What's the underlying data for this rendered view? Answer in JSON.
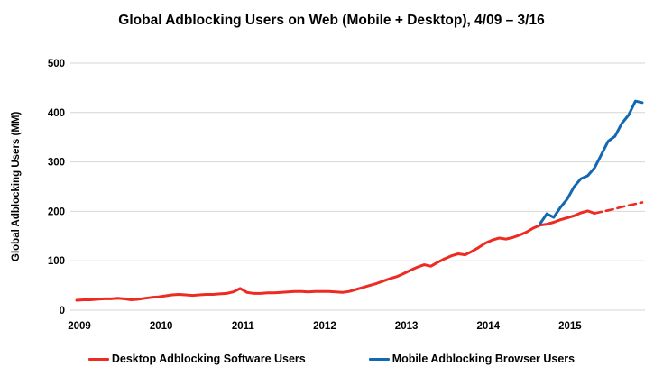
{
  "chart_data": {
    "type": "line",
    "title": "Global Adblocking Users on Web (Mobile + Desktop), 4/09 – 3/16",
    "xlabel": "",
    "ylabel": "Global Adblocking Users (MM)",
    "ylim": [
      0,
      500
    ],
    "y_ticks": [
      0,
      100,
      200,
      300,
      400,
      500
    ],
    "x_range_months": [
      0,
      83
    ],
    "x_period": "monthly, Apr 2009 - Mar 2016",
    "x_ticks": [
      {
        "label": "2009",
        "month": 0
      },
      {
        "label": "2010",
        "month": 12
      },
      {
        "label": "2011",
        "month": 24
      },
      {
        "label": "2012",
        "month": 36
      },
      {
        "label": "2013",
        "month": 48
      },
      {
        "label": "2014",
        "month": 60
      },
      {
        "label": "2015",
        "month": 72
      }
    ],
    "grid": "horizontal-only",
    "legend_position": "bottom-center",
    "colors": {
      "desktop_red": "#ee2b23",
      "mobile_blue": "#1268b3",
      "gridline_gray": "#d6d6d6",
      "text_black": "#000000"
    },
    "series": [
      {
        "id": "desktop-solid",
        "name": "Desktop Adblocking Software Users",
        "color": "#ee2b23",
        "style": "solid",
        "start_month": 0,
        "values": [
          20,
          21,
          21,
          22,
          23,
          23,
          24,
          23,
          21,
          22,
          24,
          26,
          27,
          29,
          31,
          32,
          31,
          30,
          31,
          32,
          32,
          33,
          34,
          37,
          44,
          36,
          34,
          34,
          35,
          35,
          36,
          37,
          38,
          38,
          37,
          38,
          38,
          38,
          37,
          36,
          38,
          42,
          46,
          50,
          54,
          59,
          64,
          68,
          74,
          81,
          87,
          92,
          89,
          97,
          104,
          110,
          114,
          112,
          119,
          127,
          136,
          142,
          146,
          144,
          147,
          152,
          158,
          166,
          172,
          174,
          178,
          183,
          187,
          191,
          197,
          201,
          196
        ]
      },
      {
        "id": "desktop-projection",
        "name": "Desktop projection (dashed)",
        "color": "#ee2b23",
        "style": "dashed",
        "start_month": 76,
        "values": [
          196,
          199,
          202,
          205,
          209,
          212,
          215,
          218
        ]
      },
      {
        "id": "mobile",
        "name": "Mobile Adblocking Browser Users",
        "color": "#1268b3",
        "style": "solid",
        "start_month": 68,
        "values": [
          175,
          195,
          188,
          208,
          225,
          250,
          266,
          272,
          288,
          315,
          342,
          352,
          378,
          395,
          423,
          420
        ]
      }
    ],
    "legend": [
      {
        "label": "Desktop Adblocking Software Users",
        "color": "#ee2b23"
      },
      {
        "label": "Mobile Adblocking Browser Users",
        "color": "#1268b3"
      }
    ]
  }
}
